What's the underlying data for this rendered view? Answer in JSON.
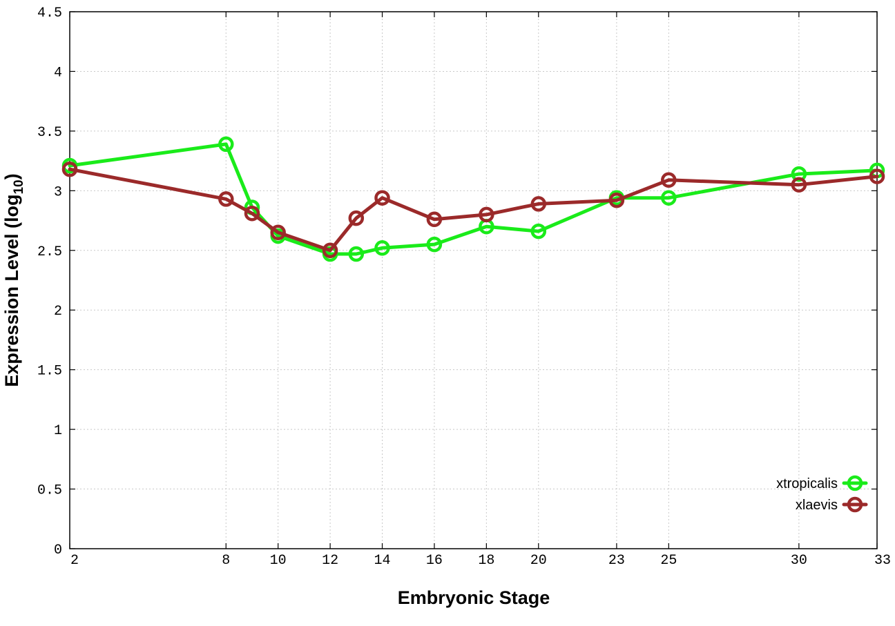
{
  "chart_data": {
    "type": "line",
    "xlabel": "Embryonic Stage",
    "ylabel_main": "Expression Level (log",
    "ylabel_sub": "10",
    "ylabel_close": ")",
    "x_ticks": [
      "2",
      "8",
      "10",
      "12",
      "14",
      "16",
      "18",
      "20",
      "23",
      "25",
      "30",
      "33"
    ],
    "y_ticks": [
      "0",
      "0.5",
      "1",
      "1.5",
      "2",
      "2.5",
      "3",
      "3.5",
      "4",
      "4.5"
    ],
    "ylim": [
      0,
      4.5
    ],
    "grid": true,
    "legend_position": "bottom-right",
    "series": [
      {
        "name": "xtropicalis",
        "color": "#1aeb1a",
        "points": [
          {
            "x": "2",
            "y": 3.21
          },
          {
            "x": "8",
            "y": 3.39
          },
          {
            "x": "9",
            "y": 2.86
          },
          {
            "x": "10",
            "y": 2.62
          },
          {
            "x": "12",
            "y": 2.47
          },
          {
            "x": "13",
            "y": 2.47
          },
          {
            "x": "14",
            "y": 2.52
          },
          {
            "x": "16",
            "y": 2.55
          },
          {
            "x": "18",
            "y": 2.7
          },
          {
            "x": "20",
            "y": 2.66
          },
          {
            "x": "23",
            "y": 2.94
          },
          {
            "x": "25",
            "y": 2.94
          },
          {
            "x": "30",
            "y": 3.14
          },
          {
            "x": "33",
            "y": 3.17
          }
        ]
      },
      {
        "name": "xlaevis",
        "color": "#9b2a2a",
        "points": [
          {
            "x": "2",
            "y": 3.18
          },
          {
            "x": "8",
            "y": 2.93
          },
          {
            "x": "9",
            "y": 2.81
          },
          {
            "x": "10",
            "y": 2.65
          },
          {
            "x": "12",
            "y": 2.5
          },
          {
            "x": "13",
            "y": 2.77
          },
          {
            "x": "14",
            "y": 2.94
          },
          {
            "x": "16",
            "y": 2.76
          },
          {
            "x": "18",
            "y": 2.8
          },
          {
            "x": "20",
            "y": 2.89
          },
          {
            "x": "23",
            "y": 2.92
          },
          {
            "x": "25",
            "y": 3.09
          },
          {
            "x": "30",
            "y": 3.05
          },
          {
            "x": "33",
            "y": 3.12
          }
        ]
      }
    ]
  }
}
